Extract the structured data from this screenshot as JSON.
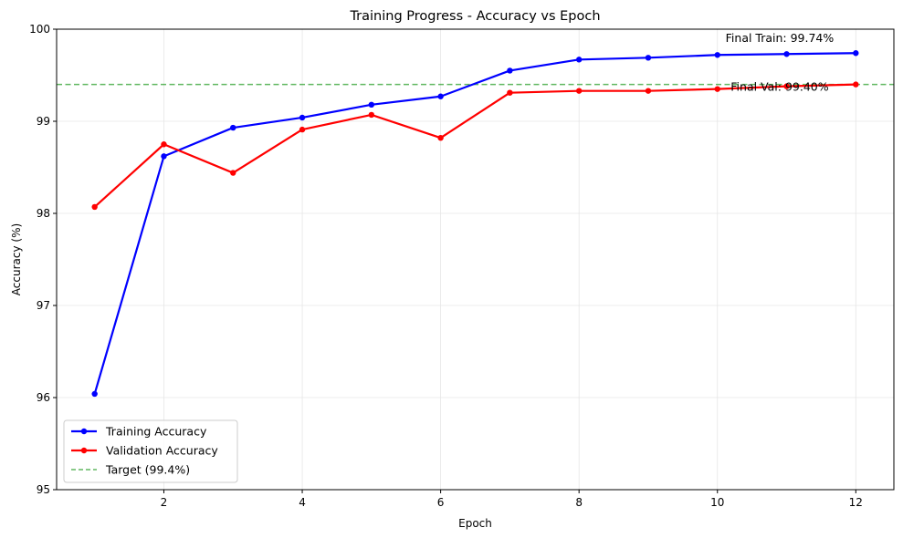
{
  "chart_data": {
    "type": "line",
    "title": "Training Progress - Accuracy vs Epoch",
    "xlabel": "Epoch",
    "ylabel": "Accuracy (%)",
    "xlim": [
      0.45,
      12.55
    ],
    "ylim": [
      95,
      100
    ],
    "xticks": [
      2,
      4,
      6,
      8,
      10,
      12
    ],
    "yticks": [
      95,
      96,
      97,
      98,
      99,
      100
    ],
    "grid": true,
    "legend_position": "lower-left",
    "x": [
      1,
      2,
      3,
      4,
      5,
      6,
      7,
      8,
      9,
      10,
      11,
      12
    ],
    "series": [
      {
        "name": "Training Accuracy",
        "color": "#0000ff",
        "marker": "circle",
        "values": [
          96.04,
          98.62,
          98.93,
          99.04,
          99.18,
          99.27,
          99.55,
          99.67,
          99.69,
          99.72,
          99.73,
          99.74
        ]
      },
      {
        "name": "Validation Accuracy",
        "color": "#ff0000",
        "marker": "circle",
        "values": [
          98.07,
          98.75,
          98.44,
          98.91,
          99.07,
          98.82,
          99.31,
          99.33,
          99.33,
          99.35,
          99.38,
          99.4
        ]
      }
    ],
    "reference_lines": [
      {
        "name": "Target (99.4%)",
        "y": 99.4,
        "color": "#2ca02c",
        "style": "dashed"
      }
    ],
    "annotations": [
      {
        "text": "Final Train: 99.74%",
        "x": 10.9,
        "y": 99.86
      },
      {
        "text": "Final Val: 99.40%",
        "x": 10.9,
        "y": 99.33
      }
    ]
  }
}
